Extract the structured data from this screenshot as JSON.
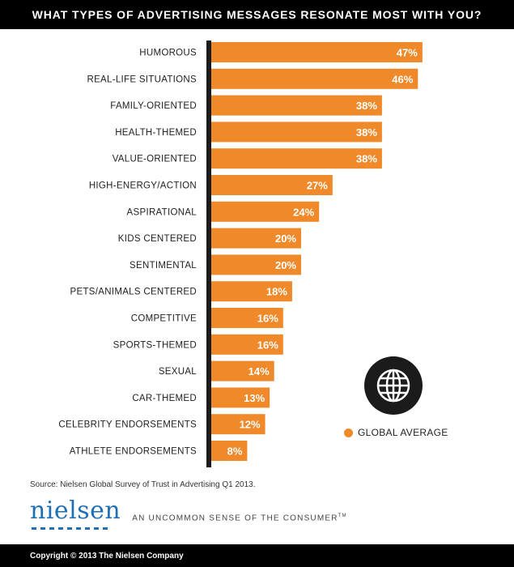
{
  "header": {
    "title": "WHAT TYPES OF ADVERTISING MESSAGES RESONATE MOST WITH YOU?"
  },
  "chart_data": {
    "type": "bar",
    "orientation": "horizontal",
    "title": "WHAT TYPES OF ADVERTISING MESSAGES RESONATE MOST WITH YOU?",
    "categories": [
      "HUMOROUS",
      "REAL-LIFE SITUATIONS",
      "FAMILY-ORIENTED",
      "HEALTH-THEMED",
      "VALUE-ORIENTED",
      "HIGH-ENERGY/ACTION",
      "ASPIRATIONAL",
      "KIDS CENTERED",
      "SENTIMENTAL",
      "PETS/ANIMALS CENTERED",
      "COMPETITIVE",
      "SPORTS-THEMED",
      "SEXUAL",
      "CAR-THEMED",
      "CELEBRITY ENDORSEMENTS",
      "ATHLETE ENDORSEMENTS"
    ],
    "series": [
      {
        "name": "GLOBAL AVERAGE",
        "values": [
          47,
          46,
          38,
          38,
          38,
          27,
          24,
          20,
          20,
          18,
          16,
          16,
          14,
          13,
          12,
          8
        ],
        "color": "#f0892a"
      }
    ],
    "value_labels": [
      "47%",
      "46%",
      "38%",
      "38%",
      "38%",
      "27%",
      "24%",
      "20%",
      "20%",
      "18%",
      "16%",
      "16%",
      "14%",
      "13%",
      "12%",
      "8%"
    ],
    "unit": "%",
    "xlim": [
      0,
      50
    ],
    "grid": false,
    "legend_position": "bottom-right",
    "axis_color": "#1b1b1b"
  },
  "legend": {
    "label": "GLOBAL AVERAGE",
    "color": "#f0892a"
  },
  "badge": {
    "icon": "globe-icon"
  },
  "source": {
    "text": "Source: Nielsen Global Survey of Trust in Advertising Q1 2013."
  },
  "brand": {
    "logo": "nielsen",
    "tagline": "AN UNCOMMON SENSE OF THE CONSUMER",
    "tagline_mark": "TM"
  },
  "footer": {
    "copyright": "Copyright © 2013 The Nielsen Company"
  }
}
